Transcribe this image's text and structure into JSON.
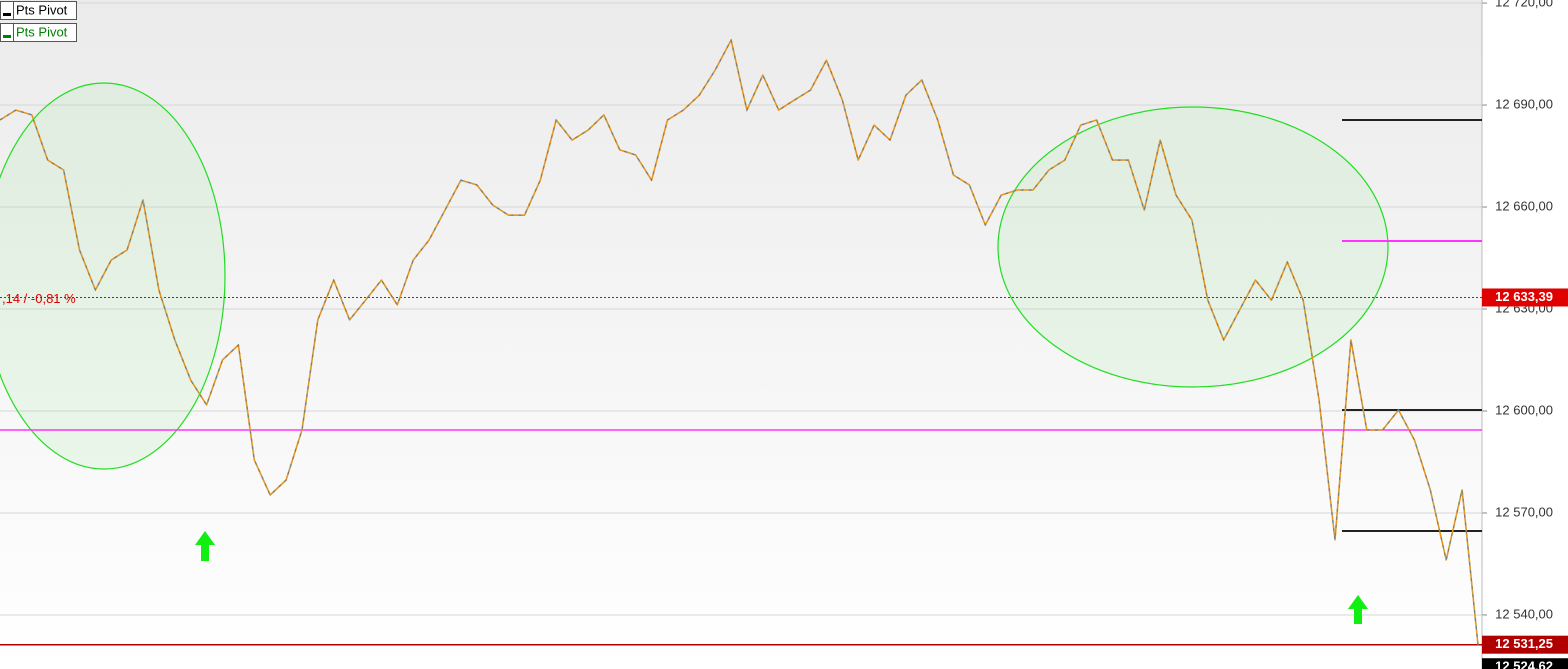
{
  "chart_data": {
    "type": "line",
    "legend": [
      {
        "label": "Pts Pivot",
        "color": "#000000"
      },
      {
        "label": "Pts Pivot",
        "color": "#008000"
      }
    ],
    "series": [
      {
        "color": "#e8961e",
        "values": [
          12685.6,
          12688.5,
          12687.1,
          12673.8,
          12670.9,
          12647.4,
          12635.6,
          12644.4,
          12647.4,
          12662.1,
          12635.6,
          12620.9,
          12609.1,
          12601.8,
          12615.0,
          12619.4,
          12585.6,
          12575.3,
          12579.7,
          12594.4,
          12626.8,
          12638.5,
          12626.8,
          12632.6,
          12638.5,
          12631.2,
          12644.4,
          12650.3,
          12659.1,
          12667.9,
          12666.5,
          12660.6,
          12657.6,
          12657.6,
          12667.9,
          12685.6,
          12679.7,
          12682.6,
          12687.1,
          12676.8,
          12675.3,
          12667.9,
          12685.6,
          12688.5,
          12692.9,
          12700.3,
          12709.1,
          12688.5,
          12698.8,
          12688.5,
          12691.5,
          12694.4,
          12703.2,
          12691.5,
          12673.8,
          12684.1,
          12679.7,
          12692.9,
          12697.4,
          12685.6,
          12669.4,
          12666.5,
          12654.7,
          12663.5,
          12665.0,
          12665.0,
          12670.9,
          12673.8,
          12684.1,
          12685.6,
          12673.8,
          12673.8,
          12659.1,
          12679.7,
          12663.5,
          12656.2,
          12632.6,
          12620.9,
          12629.7,
          12638.5,
          12632.6,
          12643.8,
          12632.6,
          12603.2,
          12562.1,
          12620.9,
          12594.4,
          12594.4,
          12600.3,
          12591.5,
          12576.8,
          12556.2,
          12576.8,
          12531.25
        ]
      }
    ],
    "ylim": [
      12524.1,
      12720.9
    ],
    "yticks": [
      {
        "value": 12540,
        "label": "12 540,00"
      },
      {
        "value": 12570,
        "label": "12 570,00"
      },
      {
        "value": 12600,
        "label": "12 600,00"
      },
      {
        "value": 12630,
        "label": "12 630,00"
      },
      {
        "value": 12660,
        "label": "12 660,00"
      },
      {
        "value": 12690,
        "label": "12 690,00"
      },
      {
        "value": 12720,
        "label": "12 720,00"
      }
    ],
    "grid": true,
    "reference_lines": [
      {
        "value": 12633.39,
        "label": "12 633,39",
        "color": "#e00000",
        "style": "dotted",
        "annotation": ",14 / -0,81 %"
      },
      {
        "value": 12594.4,
        "color": "#ff33ff",
        "style": "solid"
      },
      {
        "value": 12531.25,
        "label": "12 531,25",
        "color": "#b00000",
        "style": "solid"
      }
    ],
    "pivots": [
      {
        "value": 12685.6,
        "color": "#222222"
      },
      {
        "value": 12650.0,
        "color": "#ff33ff"
      },
      {
        "value": 12600.3,
        "color": "#222222"
      },
      {
        "value": 12564.7,
        "color": "#222222"
      }
    ],
    "last_price": {
      "value": 12524.62,
      "label": "12 524,62",
      "color": "#000000"
    }
  }
}
